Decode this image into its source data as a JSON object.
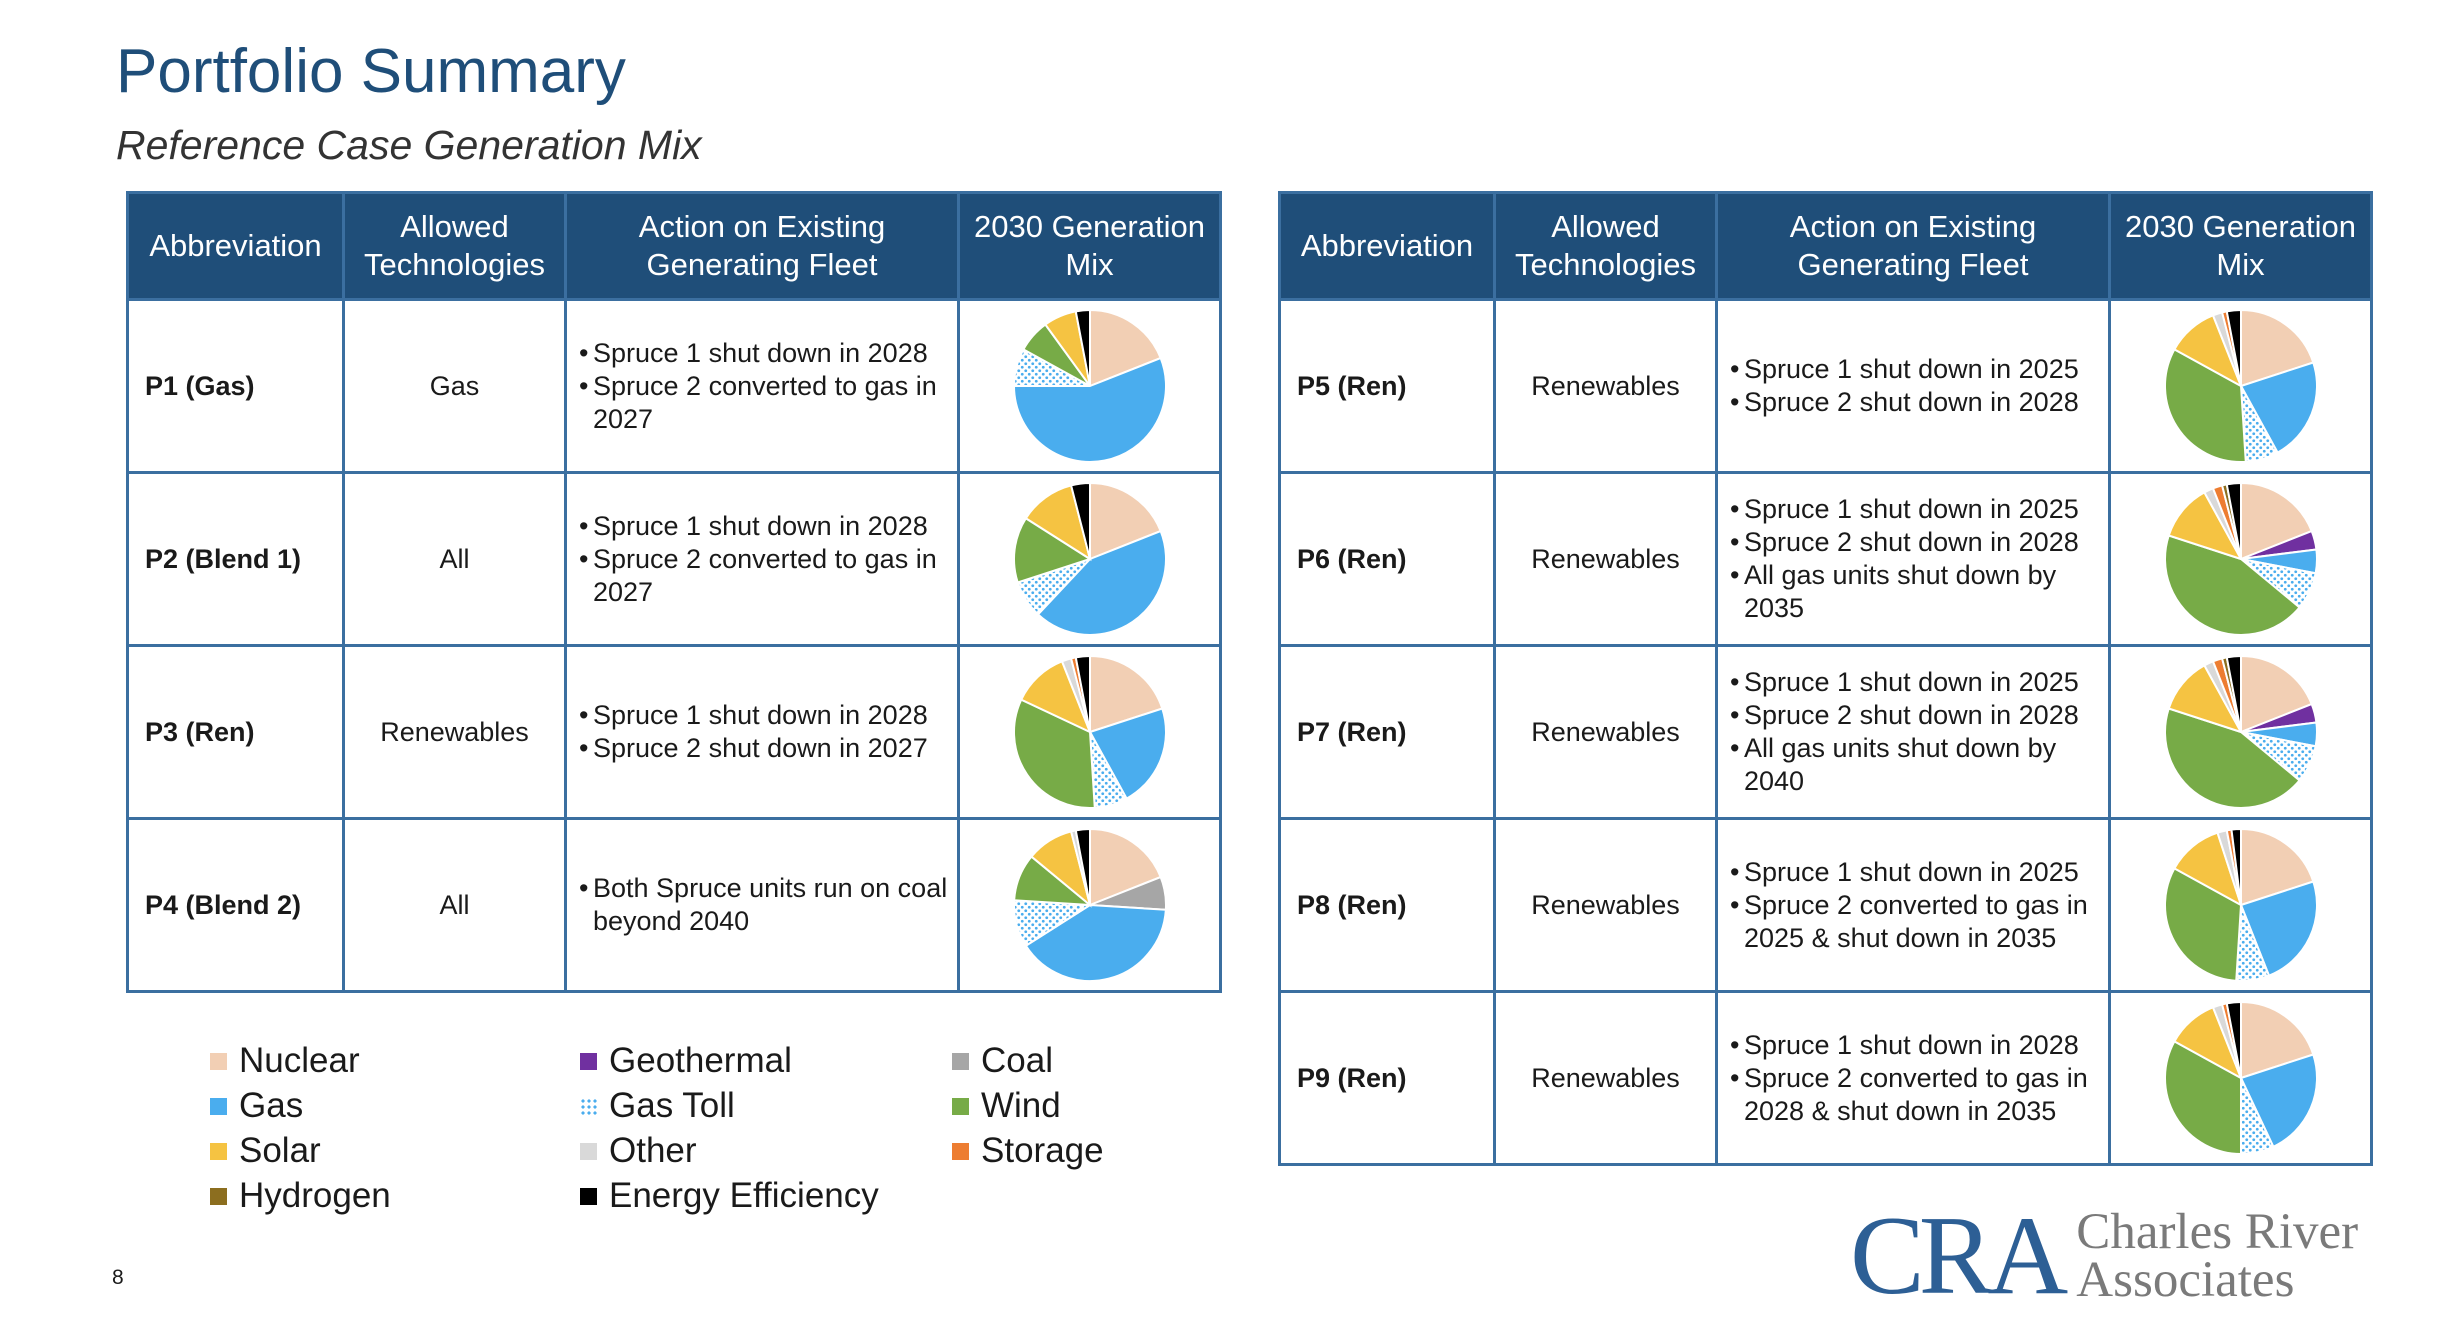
{
  "header": {
    "title": "Portfolio Summary",
    "subtitle": "Reference Case Generation Mix"
  },
  "table": {
    "columns": [
      "Abbreviation",
      "Allowed Technologies",
      "Action on Existing Generating Fleet",
      "2030 Generation Mix"
    ]
  },
  "colors": {
    "Nuclear": "#f2cfb4",
    "Geothermal": "#7030a0",
    "Coal": "#a6a6a6",
    "Gas": "#4aadee",
    "Gas Toll": "#4aadee",
    "Wind": "#77ab47",
    "Solar": "#f5c342",
    "Other": "#d9d9d9",
    "Storage": "#ed7d31",
    "Hydrogen": "#8c6e1f",
    "Energy Efficiency": "#000000"
  },
  "legend": {
    "items": [
      {
        "name": "Nuclear",
        "icon": "solid-square"
      },
      {
        "name": "Geothermal",
        "icon": "solid-square"
      },
      {
        "name": "Coal",
        "icon": "solid-square"
      },
      {
        "name": "Gas",
        "icon": "solid-square"
      },
      {
        "name": "Gas Toll",
        "icon": "dotted-square"
      },
      {
        "name": "Wind",
        "icon": "solid-square"
      },
      {
        "name": "Solar",
        "icon": "solid-square"
      },
      {
        "name": "Other",
        "icon": "solid-square"
      },
      {
        "name": "Storage",
        "icon": "solid-square"
      },
      {
        "name": "Hydrogen",
        "icon": "solid-square"
      },
      {
        "name": "Energy Efficiency",
        "icon": "solid-square"
      }
    ]
  },
  "portfolios": [
    {
      "abbr": "P1 (Gas)",
      "tech": "Gas",
      "actions": [
        "Spruce 1 shut down in 2028",
        "Spruce 2 converted to gas in 2027"
      ]
    },
    {
      "abbr": "P2 (Blend 1)",
      "tech": "All",
      "actions": [
        "Spruce 1 shut down in 2028",
        "Spruce 2 converted to gas in 2027"
      ]
    },
    {
      "abbr": "P3 (Ren)",
      "tech": "Renewables",
      "actions": [
        "Spruce 1 shut down in 2028",
        "Spruce 2 shut down in 2027"
      ]
    },
    {
      "abbr": "P4 (Blend 2)",
      "tech": "All",
      "actions": [
        "Both Spruce units run on coal beyond 2040"
      ]
    },
    {
      "abbr": "P5 (Ren)",
      "tech": "Renewables",
      "actions": [
        "Spruce 1 shut down in 2025",
        "Spruce 2 shut down in 2028"
      ]
    },
    {
      "abbr": "P6 (Ren)",
      "tech": "Renewables",
      "actions": [
        "Spruce 1 shut down in 2025",
        "Spruce 2 shut down in 2028",
        "All gas units shut down by 2035"
      ]
    },
    {
      "abbr": "P7 (Ren)",
      "tech": "Renewables",
      "actions": [
        "Spruce 1 shut down in 2025",
        "Spruce 2 shut down in 2028",
        "All gas units shut down by 2040"
      ]
    },
    {
      "abbr": "P8 (Ren)",
      "tech": "Renewables",
      "actions": [
        "Spruce 1 shut down in 2025",
        "Spruce 2 converted to gas in 2025 & shut down in 2035"
      ]
    },
    {
      "abbr": "P9 (Ren)",
      "tech": "Renewables",
      "actions": [
        "Spruce 1 shut down in 2028",
        "Spruce 2 converted to gas in 2028 & shut down in 2035"
      ]
    }
  ],
  "chart_data": [
    {
      "type": "pie",
      "portfolio": "P1 (Gas)",
      "slices": [
        {
          "name": "Nuclear",
          "value": 19
        },
        {
          "name": "Gas",
          "value": 56
        },
        {
          "name": "Gas Toll",
          "value": 8
        },
        {
          "name": "Wind",
          "value": 7
        },
        {
          "name": "Solar",
          "value": 7
        },
        {
          "name": "Energy Efficiency",
          "value": 3
        }
      ]
    },
    {
      "type": "pie",
      "portfolio": "P2 (Blend 1)",
      "slices": [
        {
          "name": "Nuclear",
          "value": 19
        },
        {
          "name": "Gas",
          "value": 43
        },
        {
          "name": "Gas Toll",
          "value": 8
        },
        {
          "name": "Wind",
          "value": 14
        },
        {
          "name": "Solar",
          "value": 12
        },
        {
          "name": "Energy Efficiency",
          "value": 4
        }
      ]
    },
    {
      "type": "pie",
      "portfolio": "P3 (Ren)",
      "slices": [
        {
          "name": "Nuclear",
          "value": 20
        },
        {
          "name": "Gas",
          "value": 22
        },
        {
          "name": "Gas Toll",
          "value": 7
        },
        {
          "name": "Wind",
          "value": 33
        },
        {
          "name": "Solar",
          "value": 12
        },
        {
          "name": "Other",
          "value": 2
        },
        {
          "name": "Storage",
          "value": 1
        },
        {
          "name": "Energy Efficiency",
          "value": 3
        }
      ]
    },
    {
      "type": "pie",
      "portfolio": "P4 (Blend 2)",
      "slices": [
        {
          "name": "Nuclear",
          "value": 19
        },
        {
          "name": "Coal",
          "value": 7
        },
        {
          "name": "Gas",
          "value": 40
        },
        {
          "name": "Gas Toll",
          "value": 10
        },
        {
          "name": "Wind",
          "value": 10
        },
        {
          "name": "Solar",
          "value": 10
        },
        {
          "name": "Other",
          "value": 1
        },
        {
          "name": "Energy Efficiency",
          "value": 3
        }
      ]
    },
    {
      "type": "pie",
      "portfolio": "P5 (Ren)",
      "slices": [
        {
          "name": "Nuclear",
          "value": 20
        },
        {
          "name": "Gas",
          "value": 22
        },
        {
          "name": "Gas Toll",
          "value": 7
        },
        {
          "name": "Wind",
          "value": 34
        },
        {
          "name": "Solar",
          "value": 11
        },
        {
          "name": "Other",
          "value": 2
        },
        {
          "name": "Storage",
          "value": 1
        },
        {
          "name": "Energy Efficiency",
          "value": 3
        }
      ]
    },
    {
      "type": "pie",
      "portfolio": "P6 (Ren)",
      "slices": [
        {
          "name": "Nuclear",
          "value": 19
        },
        {
          "name": "Geothermal",
          "value": 4
        },
        {
          "name": "Gas",
          "value": 5
        },
        {
          "name": "Gas Toll",
          "value": 8
        },
        {
          "name": "Wind",
          "value": 44
        },
        {
          "name": "Solar",
          "value": 12
        },
        {
          "name": "Other",
          "value": 2
        },
        {
          "name": "Storage",
          "value": 2
        },
        {
          "name": "Hydrogen",
          "value": 1
        },
        {
          "name": "Energy Efficiency",
          "value": 3
        }
      ]
    },
    {
      "type": "pie",
      "portfolio": "P7 (Ren)",
      "slices": [
        {
          "name": "Nuclear",
          "value": 19
        },
        {
          "name": "Geothermal",
          "value": 4
        },
        {
          "name": "Gas",
          "value": 5
        },
        {
          "name": "Gas Toll",
          "value": 8
        },
        {
          "name": "Wind",
          "value": 44
        },
        {
          "name": "Solar",
          "value": 12
        },
        {
          "name": "Other",
          "value": 2
        },
        {
          "name": "Storage",
          "value": 2
        },
        {
          "name": "Hydrogen",
          "value": 1
        },
        {
          "name": "Energy Efficiency",
          "value": 3
        }
      ]
    },
    {
      "type": "pie",
      "portfolio": "P8 (Ren)",
      "slices": [
        {
          "name": "Nuclear",
          "value": 20
        },
        {
          "name": "Gas",
          "value": 24
        },
        {
          "name": "Gas Toll",
          "value": 7
        },
        {
          "name": "Wind",
          "value": 32
        },
        {
          "name": "Solar",
          "value": 12
        },
        {
          "name": "Other",
          "value": 2
        },
        {
          "name": "Storage",
          "value": 1
        },
        {
          "name": "Energy Efficiency",
          "value": 2
        }
      ]
    },
    {
      "type": "pie",
      "portfolio": "P9 (Ren)",
      "slices": [
        {
          "name": "Nuclear",
          "value": 20
        },
        {
          "name": "Gas",
          "value": 23
        },
        {
          "name": "Gas Toll",
          "value": 7
        },
        {
          "name": "Wind",
          "value": 33
        },
        {
          "name": "Solar",
          "value": 11
        },
        {
          "name": "Other",
          "value": 2
        },
        {
          "name": "Storage",
          "value": 1
        },
        {
          "name": "Energy Efficiency",
          "value": 3
        }
      ]
    }
  ],
  "footer": {
    "page_number": "8"
  },
  "logo": {
    "mark": "CRA",
    "line1": "Charles River",
    "line2": "Associates"
  }
}
